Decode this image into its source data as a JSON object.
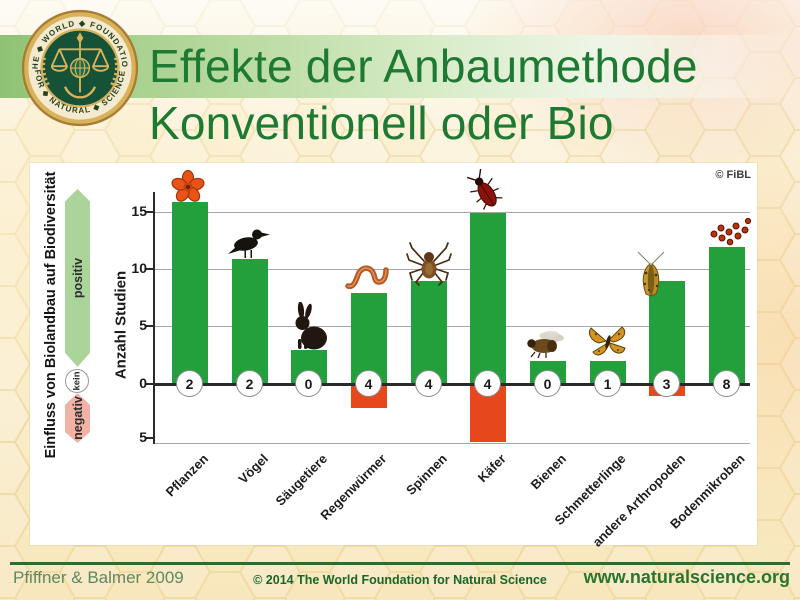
{
  "header": {
    "title_line1": "Effekte der Anbaumethode",
    "title_line2": "Konventionell oder Bio"
  },
  "logo": {
    "top_text": "THE ◆ WORLD ◆ FOUNDATION",
    "bottom_text": "FOR ◆ NATURAL ◆ SCIENCE"
  },
  "chart_data": {
    "type": "bar",
    "title": "",
    "categories": [
      "Pflanzen",
      "Vögel",
      "Säugetiere",
      "Regenwürmer",
      "Spinnen",
      "Käfer",
      "Bienen",
      "Schmetterlinge",
      "andere Arthropoden",
      "Bodenmikroben"
    ],
    "series": [
      {
        "name": "positiv",
        "color": "#23a03c",
        "values": [
          16,
          11,
          3,
          8,
          9,
          15,
          2,
          2,
          9,
          12
        ]
      },
      {
        "name": "negativ",
        "color": "#e6471d",
        "values": [
          0,
          0,
          0,
          -2,
          0,
          -5,
          0,
          0,
          -1,
          0
        ]
      }
    ],
    "neutral_counts": [
      2,
      2,
      0,
      4,
      4,
      4,
      0,
      1,
      3,
      8
    ],
    "icons": [
      "flower-icon",
      "bird-icon",
      "rabbit-icon",
      "worm-icon",
      "spider-icon",
      "beetle-icon",
      "bee-icon",
      "butterfly-icon",
      "moth-icon",
      "microbes-icon"
    ],
    "ylabel": "Anzahl Studien",
    "yticks": [
      "15",
      "10",
      "5",
      "0",
      "5"
    ],
    "ylim": [
      -5.2,
      16.8
    ],
    "grid": true,
    "legend_position": "none",
    "side_label": "Einfluss von Biolandbau auf Biodiversität",
    "effect_labels": {
      "positive": "positiv",
      "neutral": "kein",
      "negative": "negativ"
    },
    "credit": "© FiBL"
  },
  "footer": {
    "source": "Pfiffner & Balmer 2009",
    "copyright": "© 2014 The World Foundation for Natural Science",
    "website": "www.naturalscience.org"
  }
}
